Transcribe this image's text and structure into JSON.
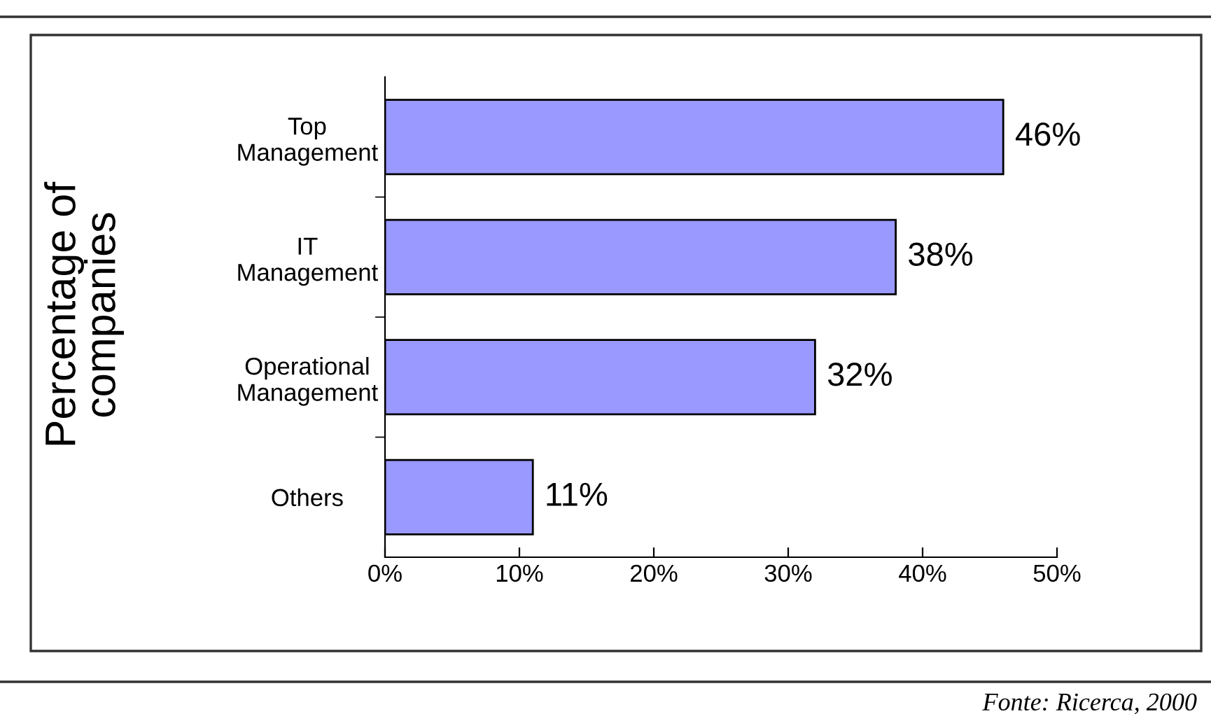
{
  "chart_data": {
    "type": "bar",
    "orientation": "horizontal",
    "ylabel": "Percentage of\ncompanies",
    "categories": [
      "Top\nManagement",
      "IT\nManagement",
      "Operational\nManagement",
      "Others"
    ],
    "values": [
      46,
      38,
      32,
      11
    ],
    "value_labels": [
      "46%",
      "38%",
      "32%",
      "11%"
    ],
    "color": "#9999ff",
    "xlim": [
      0,
      50
    ],
    "xticks": [
      {
        "value": 0,
        "label": "0%"
      },
      {
        "value": 10,
        "label": "10%"
      },
      {
        "value": 20,
        "label": "20%"
      },
      {
        "value": 30,
        "label": "30%"
      },
      {
        "value": 40,
        "label": "40%"
      },
      {
        "value": 50,
        "label": "50%"
      }
    ],
    "grid": false,
    "legend": false,
    "annotations": [
      "Fonte: Ricerca, 2000"
    ]
  }
}
